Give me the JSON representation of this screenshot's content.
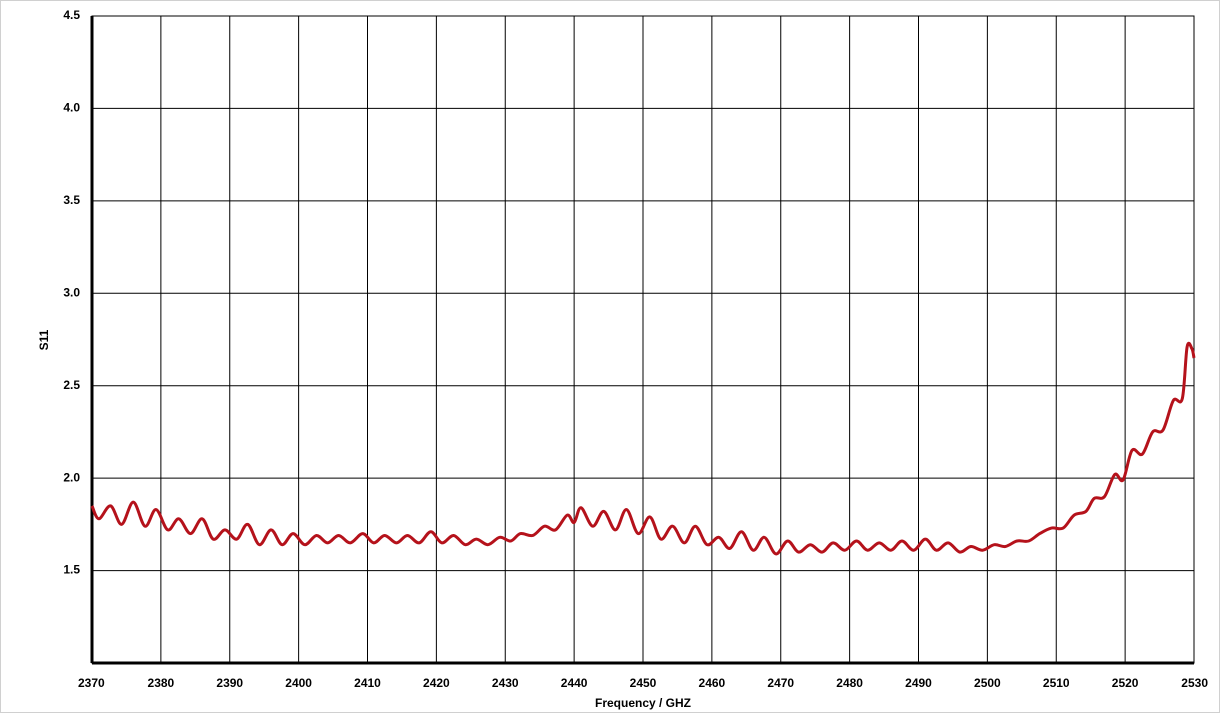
{
  "chart_data": {
    "type": "line",
    "x_label": "Frequency / GHZ",
    "y_label": "S11",
    "xlim": [
      2370,
      2530
    ],
    "xticks": [
      2370,
      2380,
      2390,
      2400,
      2410,
      2420,
      2430,
      2440,
      2450,
      2460,
      2470,
      2480,
      2490,
      2500,
      2510,
      2520,
      2530
    ],
    "ylim": [
      1.0,
      4.5
    ],
    "yticks": [
      1.5,
      {
        "value": 2,
        "label": "2.0"
      },
      2.5,
      {
        "value": 3,
        "label": "3.0"
      },
      3.5,
      {
        "value": 4,
        "label": "4.0"
      },
      4.5
    ],
    "grid": true,
    "series": [
      {
        "color": "#b5121b",
        "x": [
          2370,
          2371.0,
          2372.7,
          2374.3,
          2376.0,
          2377.7,
          2379.3,
          2381.0,
          2382.6,
          2384.3,
          2386.0,
          2387.6,
          2389.3,
          2391.0,
          2392.6,
          2394.3,
          2396.0,
          2397.6,
          2399.2,
          2400.9,
          2402.6,
          2404.2,
          2405.8,
          2407.5,
          2409.3,
          2410.9,
          2412.5,
          2414.2,
          2415.8,
          2417.5,
          2419.2,
          2420.8,
          2422.5,
          2424.2,
          2425.8,
          2427.5,
          2429.2,
          2430.8,
          2432.2,
          2434.0,
          2435.7,
          2437.3,
          2439.0,
          2440.0,
          2441.0,
          2442.7,
          2444.3,
          2446.0,
          2447.6,
          2449.3,
          2451.0,
          2452.6,
          2454.3,
          2456.0,
          2457.6,
          2459.3,
          2461.0,
          2462.6,
          2464.3,
          2466.0,
          2467.6,
          2469.3,
          2471.0,
          2472.6,
          2474.3,
          2476.0,
          2477.6,
          2479.3,
          2481.0,
          2482.6,
          2484.3,
          2486.0,
          2487.6,
          2489.3,
          2491.0,
          2492.6,
          2494.3,
          2496.0,
          2497.6,
          2499.3,
          2501.0,
          2502.6,
          2504.3,
          2506.0,
          2507.6,
          2509.3,
          2511.0,
          2512.6,
          2514.3,
          2515.5,
          2517.0,
          2518.5,
          2519.7,
          2521.0,
          2522.5,
          2524.0,
          2525.5,
          2527.0,
          2528.3,
          2529.0,
          2529.7,
          2530.0
        ],
        "values": [
          1.85,
          1.78,
          1.85,
          1.75,
          1.87,
          1.74,
          1.83,
          1.72,
          1.78,
          1.7,
          1.78,
          1.67,
          1.72,
          1.67,
          1.75,
          1.64,
          1.72,
          1.64,
          1.7,
          1.64,
          1.69,
          1.65,
          1.69,
          1.65,
          1.7,
          1.65,
          1.69,
          1.65,
          1.69,
          1.65,
          1.71,
          1.65,
          1.69,
          1.64,
          1.67,
          1.64,
          1.68,
          1.66,
          1.7,
          1.69,
          1.74,
          1.72,
          1.8,
          1.76,
          1.84,
          1.74,
          1.82,
          1.72,
          1.83,
          1.7,
          1.79,
          1.67,
          1.74,
          1.65,
          1.74,
          1.64,
          1.68,
          1.62,
          1.71,
          1.61,
          1.68,
          1.59,
          1.66,
          1.6,
          1.64,
          1.6,
          1.65,
          1.61,
          1.66,
          1.61,
          1.65,
          1.61,
          1.66,
          1.61,
          1.67,
          1.61,
          1.65,
          1.6,
          1.63,
          1.61,
          1.64,
          1.63,
          1.66,
          1.66,
          1.7,
          1.73,
          1.73,
          1.8,
          1.82,
          1.89,
          1.9,
          2.02,
          1.99,
          2.15,
          2.13,
          2.25,
          2.26,
          2.42,
          2.43,
          2.71,
          2.7,
          2.65
        ]
      }
    ]
  }
}
